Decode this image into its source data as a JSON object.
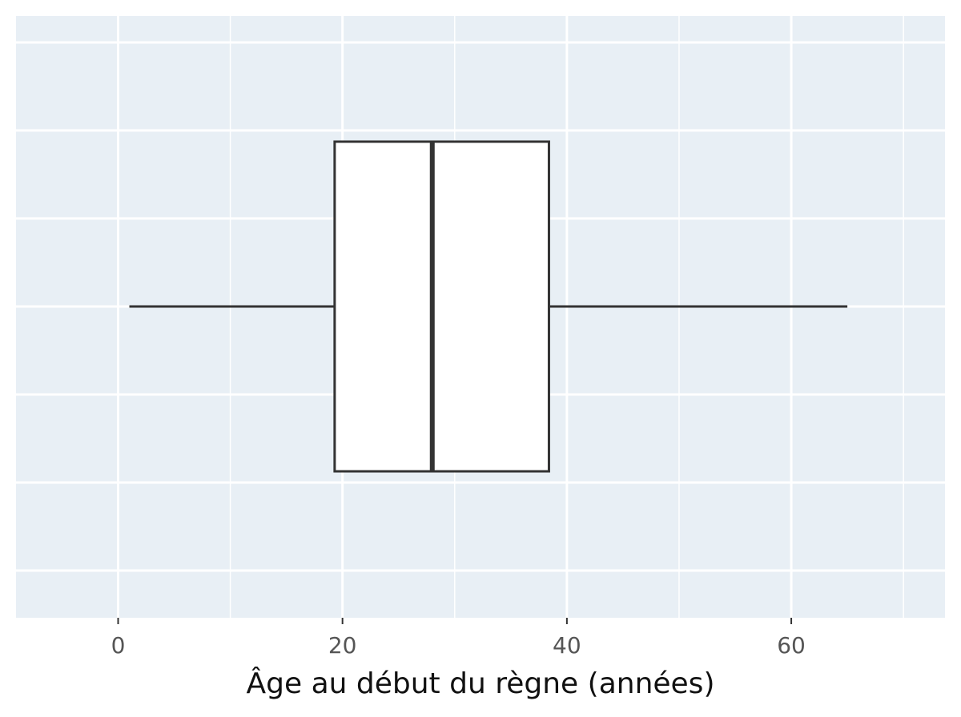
{
  "chart_data": {
    "type": "box",
    "x_label": "Âge au début du règne (années)",
    "box": {
      "min": 1,
      "q1": 19.3,
      "median": 28,
      "q3": 38.4,
      "max": 65
    },
    "xlim": [
      -9.1,
      73.7
    ],
    "xticks": [
      0,
      20,
      40,
      60
    ],
    "x_minor_ticks": [
      10,
      30,
      50,
      70
    ],
    "grid": true,
    "background": "#e8eff5",
    "color": "#ffffff",
    "line_color": "#333333"
  }
}
